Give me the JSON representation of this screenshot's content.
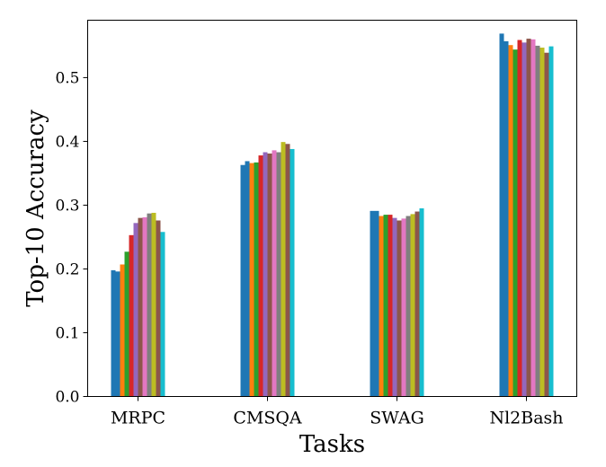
{
  "chart_data": {
    "type": "bar",
    "title": "",
    "xlabel": "Tasks",
    "ylabel": "Top-10 Accuracy",
    "ylim": [
      0.0,
      0.59
    ],
    "yticks": [
      0.0,
      0.1,
      0.2,
      0.3,
      0.4,
      0.5
    ],
    "ytick_labels": [
      "0.0",
      "0.1",
      "0.2",
      "0.3",
      "0.4",
      "0.5"
    ],
    "categories": [
      "MRPC",
      "CMSQA",
      "SWAG",
      "Nl2Bash"
    ],
    "grid": false,
    "legend": "none",
    "series": [
      {
        "color": "#1f77b4",
        "values": [
          0.198,
          0.363,
          0.291,
          0.569
        ]
      },
      {
        "color": "#1f77b4",
        "values": [
          0.196,
          0.369,
          0.291,
          0.557
        ]
      },
      {
        "color": "#ff7f0e",
        "values": [
          0.207,
          0.366,
          0.283,
          0.551
        ]
      },
      {
        "color": "#2ca02c",
        "values": [
          0.227,
          0.367,
          0.285,
          0.544
        ]
      },
      {
        "color": "#d62728",
        "values": [
          0.253,
          0.378,
          0.285,
          0.559
        ]
      },
      {
        "color": "#9467bd",
        "values": [
          0.272,
          0.383,
          0.28,
          0.555
        ]
      },
      {
        "color": "#8c564b",
        "values": [
          0.28,
          0.381,
          0.276,
          0.561
        ]
      },
      {
        "color": "#e377c2",
        "values": [
          0.281,
          0.386,
          0.279,
          0.56
        ]
      },
      {
        "color": "#7f7f7f",
        "values": [
          0.287,
          0.383,
          0.283,
          0.55
        ]
      },
      {
        "color": "#bcbd22",
        "values": [
          0.288,
          0.399,
          0.286,
          0.547
        ]
      },
      {
        "color": "#8c564b",
        "values": [
          0.276,
          0.396,
          0.29,
          0.539
        ]
      },
      {
        "color": "#17becf",
        "values": [
          0.258,
          0.388,
          0.295,
          0.549
        ]
      }
    ]
  }
}
